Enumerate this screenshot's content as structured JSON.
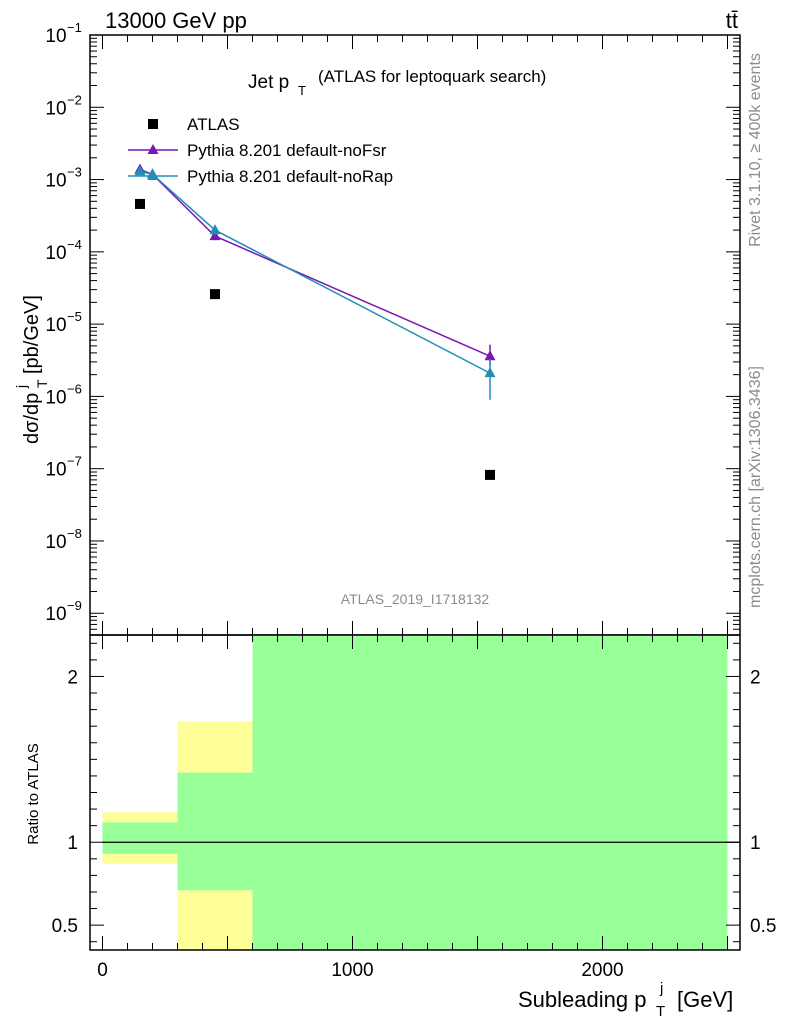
{
  "header": {
    "energy": "13000 GeV pp",
    "process": "tt̄"
  },
  "side_labels": {
    "rivet": "Rivet 3.1.10, ≥ 400k events",
    "mcplots": "mcplots.cern.ch [arXiv:1306.3436]"
  },
  "colors": {
    "data": "#000000",
    "noFsr": "#7a16b3",
    "noRap": "#1f8fb5",
    "band_yellow": "#ffff99",
    "band_green": "#99ff99"
  },
  "chart_data": [
    {
      "type": "scatter",
      "title_main": "Jet p",
      "title_sub": "T",
      "title_rest": "(ATLAS for leptoquark search)",
      "ylabel": "dσ/dp_T^j [pb/GeV]",
      "yscale": "log",
      "ylim": [
        5e-10,
        0.1
      ],
      "xlim": [
        -50,
        2550
      ],
      "analysis_id": "ATLAS_2019_I1718132",
      "legend_position": "top-left",
      "yticks": [
        {
          "value": 0.1,
          "base": "10",
          "exp": "−1"
        },
        {
          "value": 0.01,
          "base": "10",
          "exp": "−2"
        },
        {
          "value": 0.001,
          "base": "10",
          "exp": "−3"
        },
        {
          "value": 0.0001,
          "base": "10",
          "exp": "−4"
        },
        {
          "value": 1e-05,
          "base": "10",
          "exp": "−5"
        },
        {
          "value": 1e-06,
          "base": "10",
          "exp": "−6"
        },
        {
          "value": 1e-07,
          "base": "10",
          "exp": "−7"
        },
        {
          "value": 1e-08,
          "base": "10",
          "exp": "−8"
        },
        {
          "value": 1e-09,
          "base": "10",
          "exp": "−9"
        }
      ],
      "series": [
        {
          "name": "ATLAS",
          "marker": "square",
          "x": [
            150,
            450,
            1550
          ],
          "y": [
            0.00046,
            2.6e-05,
            8.2e-08
          ]
        },
        {
          "name": "Pythia 8.201 default-noFsr",
          "marker": "triangle",
          "x": [
            150,
            200,
            450,
            1550
          ],
          "y": [
            0.00138,
            0.00118,
            0.000165,
            3.6e-06
          ],
          "yerr_low": [
            0,
            0,
            2e-05,
            9e-07
          ],
          "yerr_high": [
            0,
            0,
            2e-05,
            1.6e-06
          ]
        },
        {
          "name": "Pythia 8.201 default-noRap",
          "marker": "triangle",
          "x": [
            150,
            200,
            450,
            1550
          ],
          "y": [
            0.0013,
            0.00118,
            0.0002,
            2.1e-06
          ],
          "yerr_low": [
            0,
            0,
            3e-05,
            1.2e-06
          ],
          "yerr_high": [
            0,
            0,
            3e-05,
            1.2e-06
          ]
        }
      ]
    },
    {
      "type": "bar",
      "ylabel": "Ratio to ATLAS",
      "xlabel_main": "Subleading p",
      "xlabel_sup": "j",
      "xlabel_sub": "T",
      "xlabel_unit": "[GeV]",
      "ylim": [
        0.35,
        2.25
      ],
      "xlim": [
        -50,
        2550
      ],
      "xticks": [
        {
          "value": 0,
          "label": "0"
        },
        {
          "value": 1000,
          "label": "1000"
        },
        {
          "value": 2000,
          "label": "2000"
        }
      ],
      "yticks": [
        {
          "value": 0.5,
          "label": "0.5"
        },
        {
          "value": 1,
          "label": "1"
        },
        {
          "value": 2,
          "label": "2"
        }
      ],
      "bands": [
        {
          "x0": 0,
          "x1": 300,
          "yellow": [
            0.87,
            1.18
          ],
          "green": [
            0.93,
            1.12
          ]
        },
        {
          "x0": 300,
          "x1": 600,
          "yellow": [
            0.35,
            1.73
          ],
          "green": [
            0.71,
            1.42
          ]
        },
        {
          "x0": 600,
          "x1": 2500,
          "yellow": [
            0.35,
            2.25
          ],
          "green": [
            0.35,
            2.25
          ]
        }
      ],
      "reference": 1
    }
  ]
}
